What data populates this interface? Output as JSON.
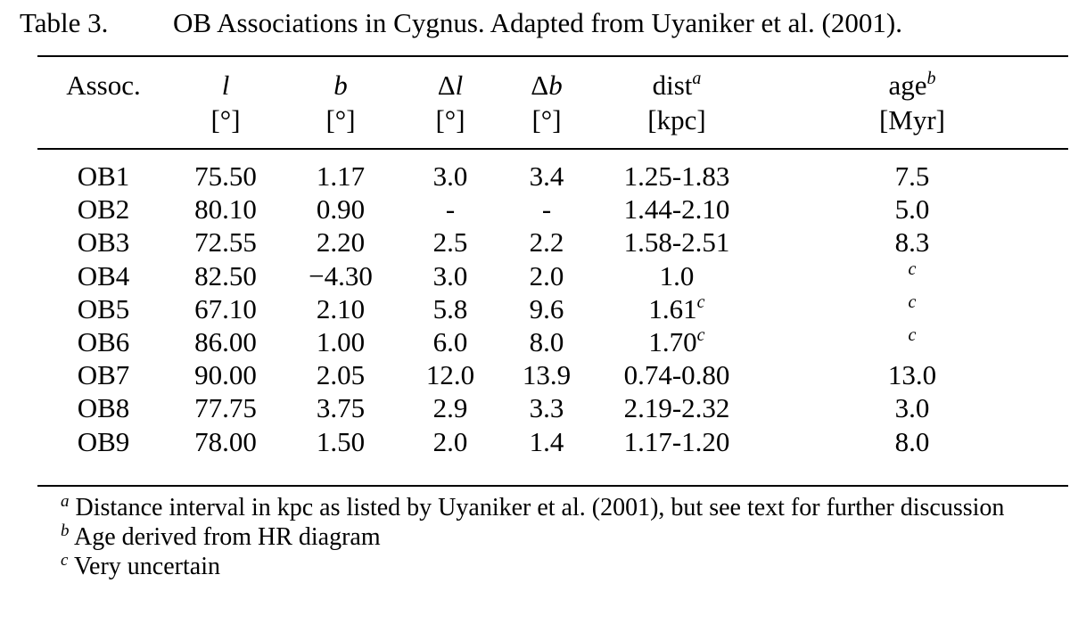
{
  "caption": {
    "label": "Table 3.",
    "title": "OB Associations in Cygnus. Adapted from Uyaniker et al. (2001)."
  },
  "columns": [
    {
      "name": "Assoc.",
      "unit": "",
      "sup": ""
    },
    {
      "name": "l",
      "unit": "[°]",
      "sup": ""
    },
    {
      "name": "b",
      "unit": "[°]",
      "sup": ""
    },
    {
      "name": "Δl",
      "unit": "[°]",
      "sup": ""
    },
    {
      "name": "Δb",
      "unit": "[°]",
      "sup": ""
    },
    {
      "name": "dist",
      "unit": "[kpc]",
      "sup": "a"
    },
    {
      "name": "age",
      "unit": "[Myr]",
      "sup": "b"
    }
  ],
  "rows": [
    {
      "assoc": "OB1",
      "l": "75.50",
      "b": "1.17",
      "dl": "3.0",
      "db": "3.4",
      "dist": "1.25-1.83",
      "dist_sup": "",
      "age": "7.5",
      "age_sup": ""
    },
    {
      "assoc": "OB2",
      "l": "80.10",
      "b": "0.90",
      "dl": "-",
      "db": "-",
      "dist": "1.44-2.10",
      "dist_sup": "",
      "age": "5.0",
      "age_sup": ""
    },
    {
      "assoc": "OB3",
      "l": "72.55",
      "b": "2.20",
      "dl": "2.5",
      "db": "2.2",
      "dist": "1.58-2.51",
      "dist_sup": "",
      "age": "8.3",
      "age_sup": ""
    },
    {
      "assoc": "OB4",
      "l": "82.50",
      "b": "−4.30",
      "dl": "3.0",
      "db": "2.0",
      "dist": "1.0",
      "dist_sup": "",
      "age": "",
      "age_sup": "c"
    },
    {
      "assoc": "OB5",
      "l": "67.10",
      "b": "2.10",
      "dl": "5.8",
      "db": "9.6",
      "dist": "1.61",
      "dist_sup": "c",
      "age": "",
      "age_sup": "c"
    },
    {
      "assoc": "OB6",
      "l": "86.00",
      "b": "1.00",
      "dl": "6.0",
      "db": "8.0",
      "dist": "1.70",
      "dist_sup": "c",
      "age": "",
      "age_sup": "c"
    },
    {
      "assoc": "OB7",
      "l": "90.00",
      "b": "2.05",
      "dl": "12.0",
      "db": "13.9",
      "dist": "0.74-0.80",
      "dist_sup": "",
      "age": "13.0",
      "age_sup": ""
    },
    {
      "assoc": "OB8",
      "l": "77.75",
      "b": "3.75",
      "dl": "2.9",
      "db": "3.3",
      "dist": "2.19-2.32",
      "dist_sup": "",
      "age": "3.0",
      "age_sup": ""
    },
    {
      "assoc": "OB9",
      "l": "78.00",
      "b": "1.50",
      "dl": "2.0",
      "db": "1.4",
      "dist": "1.17-1.20",
      "dist_sup": "",
      "age": "8.0",
      "age_sup": ""
    }
  ],
  "footnotes": [
    {
      "mark": "a",
      "text": "Distance interval in kpc as listed by Uyaniker et al. (2001), but see text for further discussion"
    },
    {
      "mark": "b",
      "text": "Age derived from HR diagram"
    },
    {
      "mark": "c",
      "text": "Very uncertain"
    }
  ]
}
